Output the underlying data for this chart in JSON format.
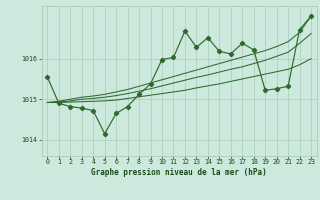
{
  "title": "Graphe pression niveau de la mer (hPa)",
  "background_color": "#cde8dc",
  "grid_color": "#aaccbb",
  "line_color": "#2d6a2d",
  "text_color": "#1a4a1a",
  "xlim": [
    -0.5,
    23.5
  ],
  "ylim": [
    1013.6,
    1017.3
  ],
  "yticks": [
    1014,
    1015,
    1016
  ],
  "xticks": [
    0,
    1,
    2,
    3,
    4,
    5,
    6,
    7,
    8,
    9,
    10,
    11,
    12,
    13,
    14,
    15,
    16,
    17,
    18,
    19,
    20,
    21,
    22,
    23
  ],
  "main_series": [
    1015.55,
    1014.9,
    1014.82,
    1014.78,
    1014.72,
    1014.15,
    1014.65,
    1014.82,
    1015.12,
    1015.38,
    1015.98,
    1016.03,
    1016.68,
    1016.28,
    1016.52,
    1016.18,
    1016.12,
    1016.38,
    1016.22,
    1015.22,
    1015.26,
    1015.32,
    1016.72,
    1017.05
  ],
  "smooth_line1": [
    1014.92,
    1014.92,
    1014.93,
    1014.94,
    1014.95,
    1014.96,
    1014.98,
    1015.02,
    1015.06,
    1015.1,
    1015.14,
    1015.18,
    1015.22,
    1015.28,
    1015.33,
    1015.38,
    1015.44,
    1015.5,
    1015.56,
    1015.62,
    1015.68,
    1015.74,
    1015.85,
    1016.0
  ],
  "smooth_line2": [
    1014.92,
    1014.93,
    1014.96,
    1015.0,
    1015.02,
    1015.05,
    1015.09,
    1015.14,
    1015.2,
    1015.26,
    1015.33,
    1015.4,
    1015.47,
    1015.54,
    1015.6,
    1015.67,
    1015.74,
    1015.8,
    1015.88,
    1015.96,
    1016.06,
    1016.16,
    1016.38,
    1016.62
  ],
  "smooth_line3": [
    1014.92,
    1014.95,
    1015.0,
    1015.05,
    1015.08,
    1015.12,
    1015.18,
    1015.24,
    1015.32,
    1015.4,
    1015.48,
    1015.56,
    1015.64,
    1015.72,
    1015.8,
    1015.88,
    1015.96,
    1016.04,
    1016.12,
    1016.2,
    1016.3,
    1016.42,
    1016.65,
    1017.05
  ]
}
